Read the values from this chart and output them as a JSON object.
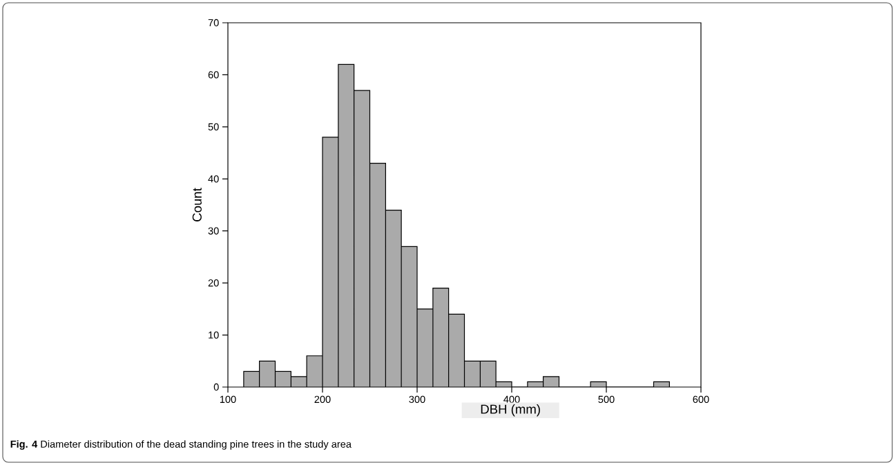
{
  "chart_data": {
    "type": "histogram",
    "xlabel": "DBH (mm)",
    "ylabel": "Count",
    "annotations": [
      "**Fig. 4** Diameter distribution of the dead standing pine trees in the study area"
    ],
    "bins": [
      116.7,
      133.3,
      150,
      166.7,
      183.3,
      200,
      216.7,
      233.3,
      250,
      266.7,
      283.3,
      300,
      316.7,
      333.3,
      350,
      366.7,
      383.3,
      400,
      416.7,
      433.3,
      450,
      466.7,
      483.3,
      500,
      516.7,
      533.3,
      550,
      566.7
    ],
    "values": [
      3,
      5,
      3,
      2,
      6,
      48,
      62,
      57,
      43,
      34,
      27,
      15,
      19,
      14,
      5,
      5,
      1,
      0,
      1,
      2,
      0,
      0,
      1,
      0,
      0,
      0,
      1
    ],
    "color": "#aaaaaa",
    "xlim": [
      100,
      600
    ],
    "xticks": [
      100,
      200,
      300,
      400,
      500,
      600
    ],
    "ylim": [
      0,
      70
    ],
    "yticks": [
      0,
      10,
      20,
      30,
      40,
      50,
      60,
      70
    ],
    "grid": false
  }
}
